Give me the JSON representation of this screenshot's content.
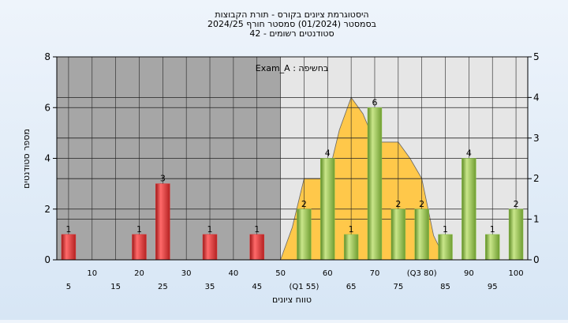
{
  "chart_data": {
    "type": "bar",
    "title_lines": [
      "היסטוגרמת ציונים בקורס - תורת הקבוצות",
      "בסמסטר  (01/2024)  סמסטר חורף 2024/25",
      "סטודנטים רשומים - 42"
    ],
    "annotation": "Exam_A : בחשיפה",
    "xlabel": "טווח ציונים",
    "ylabel": "מספר סטודנטים",
    "ylim": [
      0,
      8
    ],
    "yticks": [
      0,
      2,
      4,
      6,
      8
    ],
    "y2lim": [
      0,
      5
    ],
    "y2ticks": [
      0,
      1,
      2,
      3,
      4,
      5
    ],
    "x_tick_labels": [
      {
        "x": 5,
        "label": "5",
        "row": 2
      },
      {
        "x": 10,
        "label": "10",
        "row": 1
      },
      {
        "x": 15,
        "label": "15",
        "row": 2
      },
      {
        "x": 20,
        "label": "20",
        "row": 1
      },
      {
        "x": 25,
        "label": "25",
        "row": 2
      },
      {
        "x": 30,
        "label": "30",
        "row": 1
      },
      {
        "x": 35,
        "label": "35",
        "row": 2
      },
      {
        "x": 40,
        "label": "40",
        "row": 1
      },
      {
        "x": 45,
        "label": "45",
        "row": 2
      },
      {
        "x": 50,
        "label": "50",
        "row": 1
      },
      {
        "x": 55,
        "label": "(Q1 55)",
        "row": 2
      },
      {
        "x": 60,
        "label": "60",
        "row": 1
      },
      {
        "x": 65,
        "label": "65",
        "row": 2
      },
      {
        "x": 70,
        "label": "70",
        "row": 1
      },
      {
        "x": 75,
        "label": "75",
        "row": 2
      },
      {
        "x": 80,
        "label": "(Q3 80)",
        "row": 1
      },
      {
        "x": 85,
        "label": "85",
        "row": 2
      },
      {
        "x": 90,
        "label": "90",
        "row": 1
      },
      {
        "x": 95,
        "label": "95",
        "row": 2
      },
      {
        "x": 100,
        "label": "100",
        "row": 1
      }
    ],
    "bars": [
      {
        "x": 5,
        "value": 1,
        "label": "1",
        "color": "#e03030"
      },
      {
        "x": 20,
        "value": 1,
        "label": "1",
        "color": "#e03030"
      },
      {
        "x": 25,
        "value": 3,
        "label": "3",
        "color": "#e03030"
      },
      {
        "x": 35,
        "value": 1,
        "label": "1",
        "color": "#e03030"
      },
      {
        "x": 45,
        "value": 1,
        "label": "1",
        "color": "#e03030"
      },
      {
        "x": 55,
        "value": 2,
        "label": "2",
        "color": "#8cc04a"
      },
      {
        "x": 60,
        "value": 4,
        "label": "4",
        "color": "#8cc04a"
      },
      {
        "x": 65,
        "value": 1,
        "label": "1",
        "color": "#8cc04a"
      },
      {
        "x": 70,
        "value": 6,
        "label": "6",
        "color": "#8cc04a"
      },
      {
        "x": 75,
        "value": 2,
        "label": "2",
        "color": "#8cc04a"
      },
      {
        "x": 80,
        "value": 2,
        "label": "2",
        "color": "#8cc04a"
      },
      {
        "x": 85,
        "value": 1,
        "label": "1",
        "color": "#8cc04a"
      },
      {
        "x": 90,
        "value": 4,
        "label": "4",
        "color": "#8cc04a"
      },
      {
        "x": 95,
        "value": 1,
        "label": "1",
        "color": "#8cc04a"
      },
      {
        "x": 100,
        "value": 2,
        "label": "2",
        "color": "#8cc04a"
      }
    ],
    "area_series": {
      "color": "#ffc84a",
      "points": [
        {
          "x": 50,
          "y": 0
        },
        {
          "x": 52.5,
          "y": 0.8
        },
        {
          "x": 55,
          "y": 2
        },
        {
          "x": 57.5,
          "y": 2
        },
        {
          "x": 60,
          "y": 2
        },
        {
          "x": 62.5,
          "y": 3.2
        },
        {
          "x": 65,
          "y": 4
        },
        {
          "x": 67.5,
          "y": 3.6
        },
        {
          "x": 70,
          "y": 2.9
        },
        {
          "x": 72.5,
          "y": 2.9
        },
        {
          "x": 75,
          "y": 2.9
        },
        {
          "x": 77.5,
          "y": 2.5
        },
        {
          "x": 80,
          "y": 2
        },
        {
          "x": 82.5,
          "y": 0.6
        },
        {
          "x": 85,
          "y": 0
        }
      ]
    },
    "background_split_x": 50,
    "colors": {
      "page": "#e6eff9",
      "plot_left": "#a6a6a6",
      "plot_right": "#e6e6e6",
      "grid": "#222222"
    },
    "grid": true
  }
}
